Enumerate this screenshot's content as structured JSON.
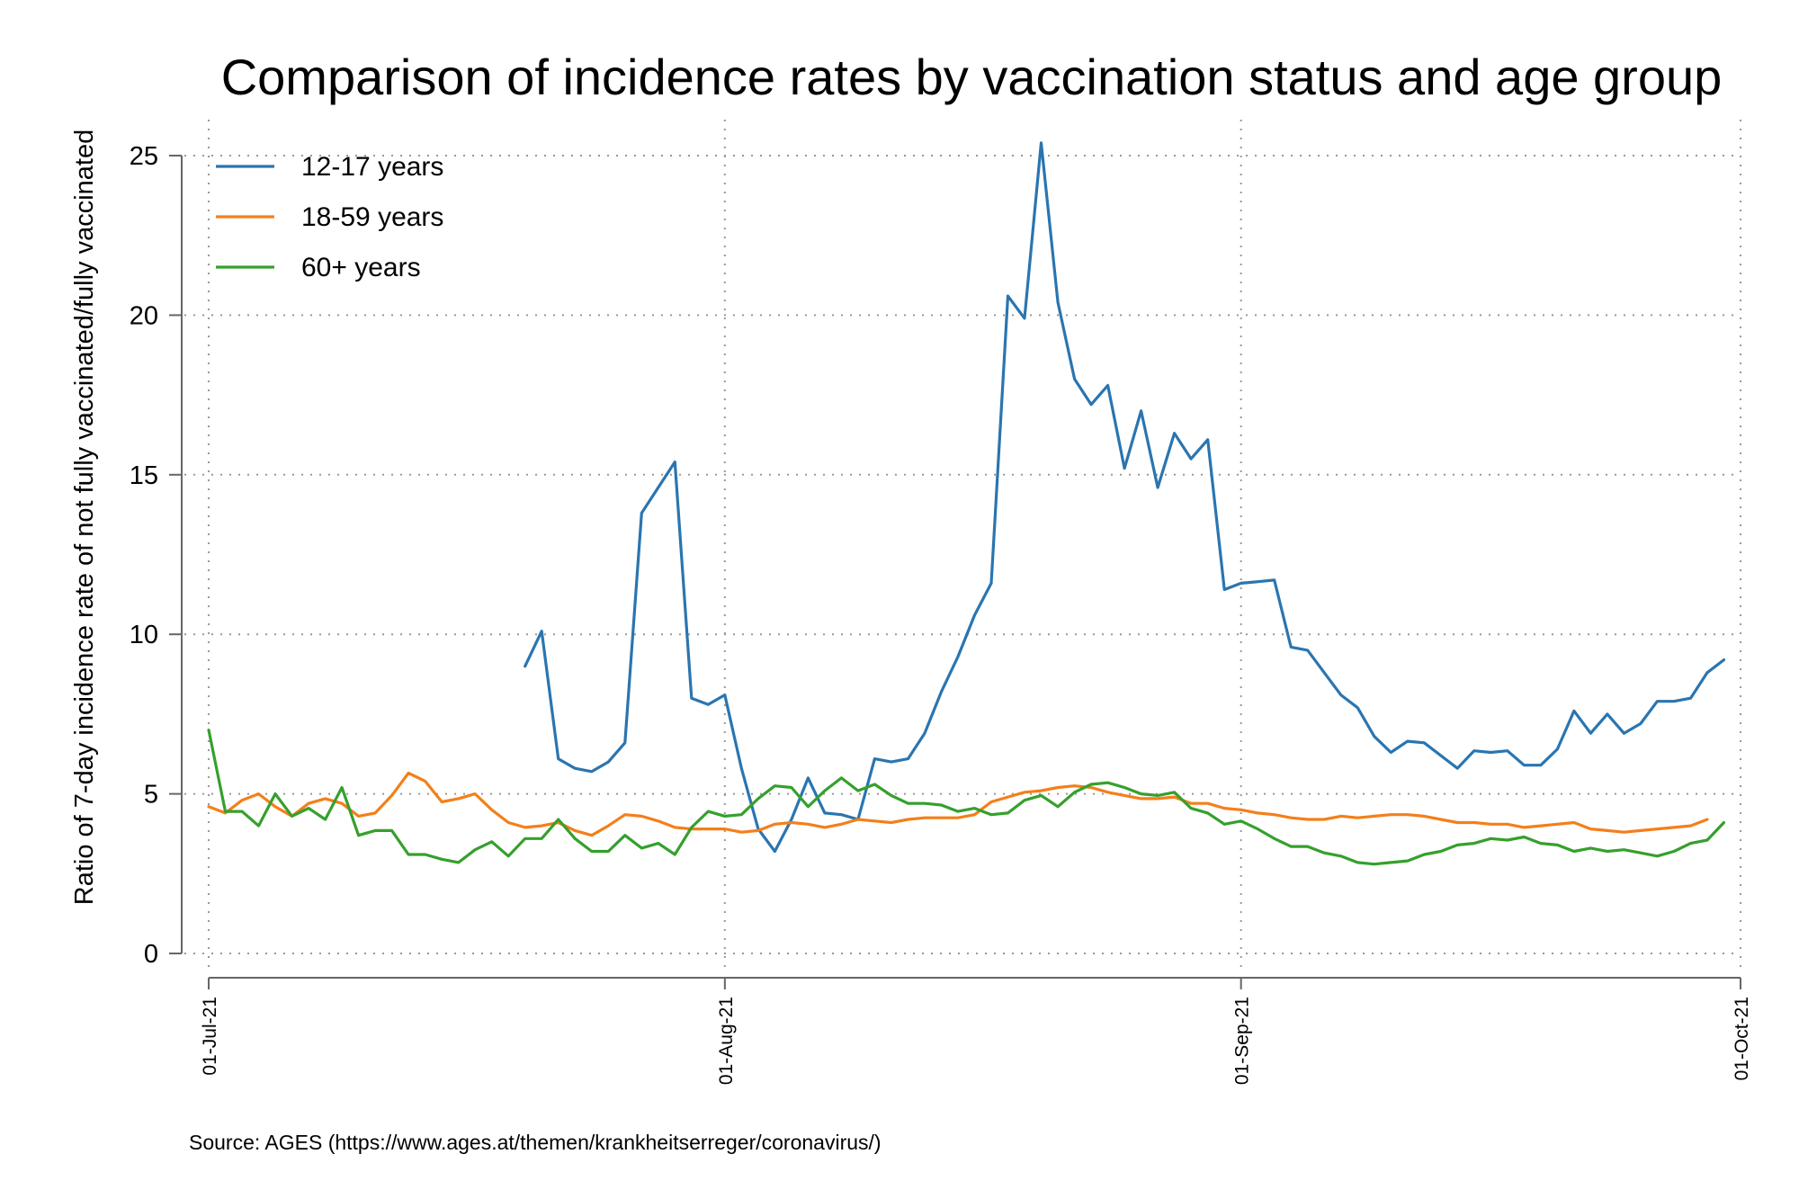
{
  "chart_data": {
    "type": "line",
    "title": "Comparison of incidence rates by vaccination status and age group",
    "ylabel": "Ratio of 7-day incidence rate of not fully vaccinated/fully vaccinated",
    "xlabel": "",
    "ylim": [
      0,
      25
    ],
    "yticks": [
      "0",
      "5",
      "10",
      "15",
      "20",
      "25"
    ],
    "x_start": "2021-07-01",
    "x_end": "2021-10-01",
    "xticks": [
      {
        "date": "2021-07-01",
        "label": "01-Jul-21"
      },
      {
        "date": "2021-08-01",
        "label": "01-Aug-21"
      },
      {
        "date": "2021-09-01",
        "label": "01-Sep-21"
      },
      {
        "date": "2021-10-01",
        "label": "01-Oct-21"
      }
    ],
    "grid": true,
    "legend_position": "top-left",
    "source": "Source: AGES (https://www.ages.at/themen/krankheitserreger/coronavirus/)",
    "series": [
      {
        "name": "12-17 years",
        "color": "#2a75b0",
        "start_date": "2021-07-20",
        "values": [
          9.0,
          10.1,
          6.1,
          5.8,
          5.7,
          6.0,
          6.6,
          13.8,
          14.6,
          15.4,
          8.0,
          7.8,
          8.1,
          5.8,
          3.9,
          3.2,
          4.2,
          5.5,
          4.4,
          4.35,
          4.2,
          6.1,
          6.0,
          6.1,
          6.9,
          8.2,
          9.3,
          10.6,
          11.6,
          20.6,
          19.9,
          25.4,
          20.4,
          18.0,
          17.2,
          17.8,
          15.2,
          17.0,
          14.6,
          16.3,
          15.5,
          16.1,
          11.4,
          11.6,
          11.65,
          11.7,
          9.6,
          9.5,
          8.8,
          8.1,
          7.7,
          6.8,
          6.3,
          6.65,
          6.6,
          6.2,
          5.8,
          6.35,
          6.3,
          6.35,
          5.9,
          5.9,
          6.4,
          7.6,
          6.9,
          7.5,
          6.9,
          7.2,
          7.9,
          7.9,
          8.0,
          8.8,
          9.2
        ]
      },
      {
        "name": "18-59 years",
        "color": "#f47f1a",
        "start_date": "2021-07-01",
        "values": [
          4.6,
          4.4,
          4.8,
          5.0,
          4.6,
          4.3,
          4.7,
          4.85,
          4.7,
          4.3,
          4.4,
          4.95,
          5.65,
          5.4,
          4.75,
          4.85,
          5.0,
          4.5,
          4.1,
          3.95,
          4.0,
          4.1,
          3.85,
          3.7,
          4.0,
          4.35,
          4.3,
          4.15,
          3.95,
          3.9,
          3.9,
          3.9,
          3.8,
          3.85,
          4.05,
          4.1,
          4.05,
          3.95,
          4.05,
          4.2,
          4.15,
          4.1,
          4.2,
          4.25,
          4.25,
          4.25,
          4.35,
          4.75,
          4.9,
          5.05,
          5.1,
          5.2,
          5.25,
          5.2,
          5.05,
          4.95,
          4.85,
          4.85,
          4.9,
          4.7,
          4.7,
          4.55,
          4.5,
          4.4,
          4.35,
          4.25,
          4.2,
          4.2,
          4.3,
          4.25,
          4.3,
          4.35,
          4.35,
          4.3,
          4.2,
          4.1,
          4.1,
          4.05,
          4.05,
          3.95,
          4.0,
          4.05,
          4.1,
          3.9,
          3.85,
          3.8,
          3.85,
          3.9,
          3.95,
          4.0,
          4.2
        ]
      },
      {
        "name": "60+ years",
        "color": "#35a02c",
        "start_date": "2021-07-01",
        "values": [
          7.0,
          4.45,
          4.45,
          4.0,
          5.0,
          4.3,
          4.55,
          4.2,
          5.2,
          3.7,
          3.85,
          3.85,
          3.1,
          3.1,
          2.95,
          2.85,
          3.25,
          3.5,
          3.05,
          3.6,
          3.6,
          4.2,
          3.6,
          3.2,
          3.2,
          3.7,
          3.3,
          3.45,
          3.1,
          3.95,
          4.45,
          4.3,
          4.35,
          4.85,
          5.25,
          5.2,
          4.6,
          5.1,
          5.5,
          5.1,
          5.3,
          4.95,
          4.7,
          4.7,
          4.65,
          4.45,
          4.55,
          4.35,
          4.4,
          4.8,
          4.95,
          4.6,
          5.05,
          5.3,
          5.35,
          5.2,
          5.0,
          4.95,
          5.05,
          4.55,
          4.4,
          4.05,
          4.15,
          3.9,
          3.6,
          3.35,
          3.35,
          3.15,
          3.05,
          2.85,
          2.8,
          2.85,
          2.9,
          3.1,
          3.2,
          3.4,
          3.45,
          3.6,
          3.55,
          3.65,
          3.45,
          3.4,
          3.2,
          3.3,
          3.2,
          3.25,
          3.15,
          3.05,
          3.2,
          3.45,
          3.55,
          4.1
        ]
      }
    ]
  }
}
